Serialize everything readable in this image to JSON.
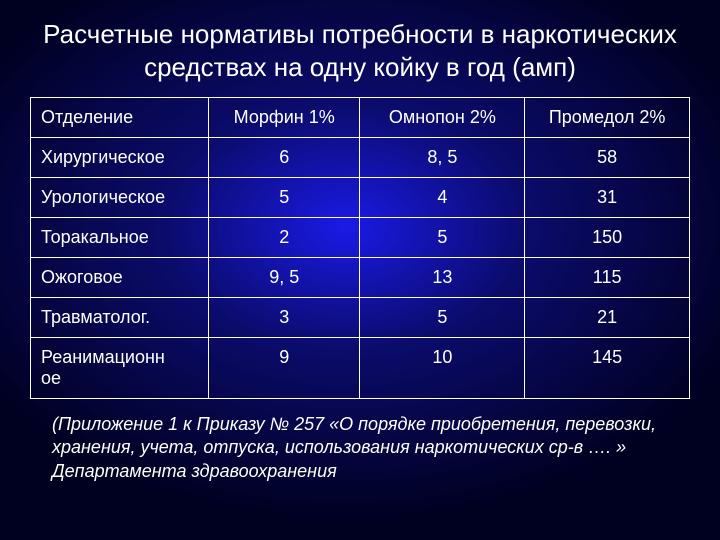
{
  "background": {
    "gradient_start": "#0b0b6b",
    "gradient_mid": "#1a1ae6",
    "gradient_end": "#000020",
    "type": "radial"
  },
  "text_color": "#ffffff",
  "border_color": "#ffffff",
  "title_fontsize": 26,
  "cell_fontsize": 18,
  "footnote_fontsize": 18,
  "title": "Расчетные нормативы потребности в наркотических средствах на одну койку в год (амп)",
  "table": {
    "columns": [
      {
        "label": "Отделение",
        "align": "left",
        "width": "27%"
      },
      {
        "label": "Морфин 1%",
        "align": "center",
        "width": "23%"
      },
      {
        "label": "Омнопон 2%",
        "align": "center",
        "width": "25%"
      },
      {
        "label": "Промедол 2%",
        "align": "center",
        "width": "25%"
      }
    ],
    "rows": [
      [
        "Хирургическое",
        "6",
        "8, 5",
        "58"
      ],
      [
        "Урологическое",
        "5",
        "4",
        "31"
      ],
      [
        "Торакальное",
        "2",
        "5",
        "150"
      ],
      [
        "Ожоговое",
        "9, 5",
        "13",
        "115"
      ],
      [
        "Травматолог.",
        "3",
        "5",
        "21"
      ],
      [
        "Реанимационное",
        "9",
        "10",
        "145"
      ]
    ]
  },
  "footnote": "(Приложение 1 к Приказу № 257 «О порядке приобретения, перевозки, хранения, учета, отпуска, использования наркотических ср-в …. » Департамента здравоохранения"
}
